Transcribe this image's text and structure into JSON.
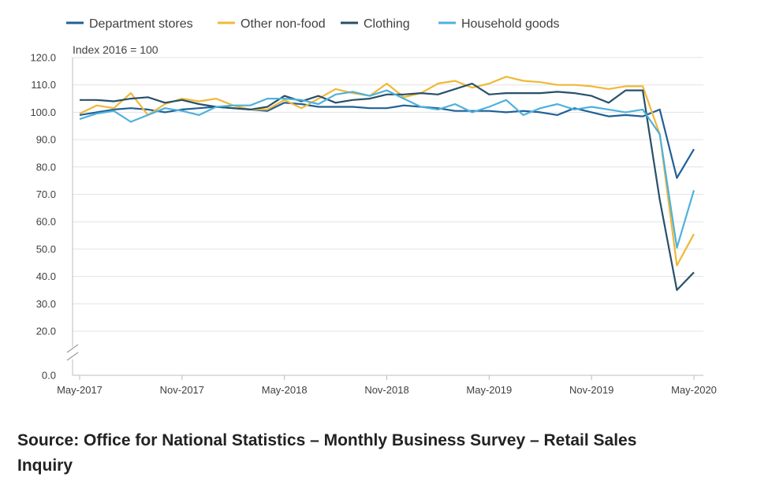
{
  "chart_data": {
    "type": "line",
    "unit_label": "Index 2016 = 100",
    "ylim": [
      0,
      120
    ],
    "yticks": [
      "0.0",
      "20.0",
      "30.0",
      "40.0",
      "50.0",
      "60.0",
      "70.0",
      "80.0",
      "90.0",
      "100.0",
      "110.0",
      "120.0"
    ],
    "axis_break": "between 0.0 and 20.0",
    "grid": true,
    "legend_position": "top",
    "x": [
      "May-2017",
      "Jun-2017",
      "Jul-2017",
      "Aug-2017",
      "Sep-2017",
      "Oct-2017",
      "Nov-2017",
      "Dec-2017",
      "Jan-2018",
      "Feb-2018",
      "Mar-2018",
      "Apr-2018",
      "May-2018",
      "Jun-2018",
      "Jul-2018",
      "Aug-2018",
      "Sep-2018",
      "Oct-2018",
      "Nov-2018",
      "Dec-2018",
      "Jan-2019",
      "Feb-2019",
      "Mar-2019",
      "Apr-2019",
      "May-2019",
      "Jun-2019",
      "Jul-2019",
      "Aug-2019",
      "Sep-2019",
      "Oct-2019",
      "Nov-2019",
      "Dec-2019",
      "Jan-2020",
      "Feb-2020",
      "Mar-2020",
      "Apr-2020",
      "May-2020"
    ],
    "xtick_labels": [
      "May-2017",
      "Nov-2017",
      "May-2018",
      "Nov-2018",
      "May-2019",
      "Nov-2019",
      "May-2020"
    ],
    "series": [
      {
        "name": "Department stores",
        "color": "#206095",
        "values": [
          99.0,
          100.0,
          101.0,
          101.5,
          101.0,
          100.0,
          101.0,
          101.5,
          102.0,
          101.5,
          101.0,
          100.5,
          103.5,
          103.0,
          102.0,
          102.0,
          102.0,
          101.5,
          101.5,
          102.5,
          102.0,
          101.5,
          100.5,
          100.5,
          100.5,
          100.0,
          100.5,
          100.0,
          99.0,
          101.5,
          100.0,
          98.5,
          99.0,
          98.5,
          101.0,
          76.0,
          86.5
        ]
      },
      {
        "name": "Other non-food",
        "color": "#f0b838",
        "values": [
          99.5,
          102.5,
          101.5,
          107.0,
          99.0,
          103.0,
          105.0,
          104.0,
          105.0,
          102.5,
          101.0,
          101.0,
          104.5,
          101.5,
          105.0,
          108.5,
          107.0,
          106.0,
          110.5,
          105.5,
          107.0,
          110.5,
          111.5,
          109.0,
          110.5,
          113.0,
          111.5,
          111.0,
          110.0,
          110.0,
          109.5,
          108.5,
          109.5,
          109.5,
          92.0,
          44.0,
          55.5
        ]
      },
      {
        "name": "Clothing",
        "color": "#27506a",
        "values": [
          104.5,
          104.5,
          104.0,
          105.0,
          105.5,
          103.5,
          104.5,
          103.0,
          102.0,
          101.5,
          101.0,
          102.0,
          106.0,
          104.0,
          106.0,
          103.5,
          104.5,
          105.0,
          106.5,
          106.5,
          107.0,
          106.5,
          108.5,
          110.5,
          106.5,
          107.0,
          107.0,
          107.0,
          107.5,
          107.0,
          106.0,
          103.5,
          108.0,
          108.0,
          68.0,
          35.0,
          41.5
        ]
      },
      {
        "name": "Household goods",
        "color": "#4eb1dc",
        "values": [
          97.5,
          99.5,
          100.5,
          96.5,
          99.0,
          101.5,
          100.5,
          99.0,
          102.0,
          102.5,
          102.5,
          105.0,
          105.0,
          104.5,
          103.0,
          106.5,
          107.5,
          106.0,
          108.0,
          105.0,
          102.0,
          101.0,
          103.0,
          100.0,
          102.0,
          104.5,
          99.0,
          101.5,
          103.0,
          101.0,
          102.0,
          101.0,
          100.0,
          101.0,
          92.0,
          50.5,
          71.5
        ]
      }
    ]
  },
  "source_text": "Source: Office for National Statistics – Monthly Business Survey – Retail Sales Inquiry"
}
